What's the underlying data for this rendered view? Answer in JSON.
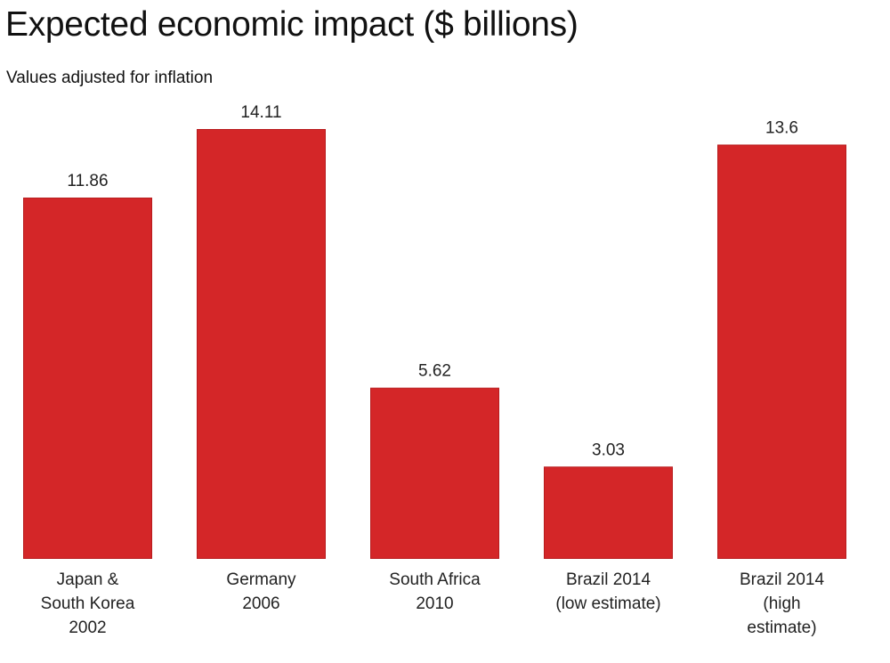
{
  "chart_data": {
    "type": "bar",
    "title": "Expected economic impact ($ billions)",
    "subtitle": "Values adjusted for inflation",
    "categories": [
      [
        "Japan &",
        "South Korea",
        "2002"
      ],
      [
        "Germany",
        "2006"
      ],
      [
        "South Africa",
        "2010"
      ],
      [
        "Brazil 2014",
        "(low estimate)"
      ],
      [
        "Brazil 2014",
        "(high",
        "estimate)"
      ]
    ],
    "values": [
      11.86,
      14.11,
      5.62,
      3.03,
      13.6
    ],
    "value_labels": [
      "11.86",
      "14.11",
      "5.62",
      "3.03",
      "13.6"
    ],
    "xlabel": "",
    "ylabel": "",
    "ylim": [
      0,
      14.11
    ],
    "grid": false,
    "bar_color": "#d42628",
    "bar_border_color": "#b81c1e"
  }
}
